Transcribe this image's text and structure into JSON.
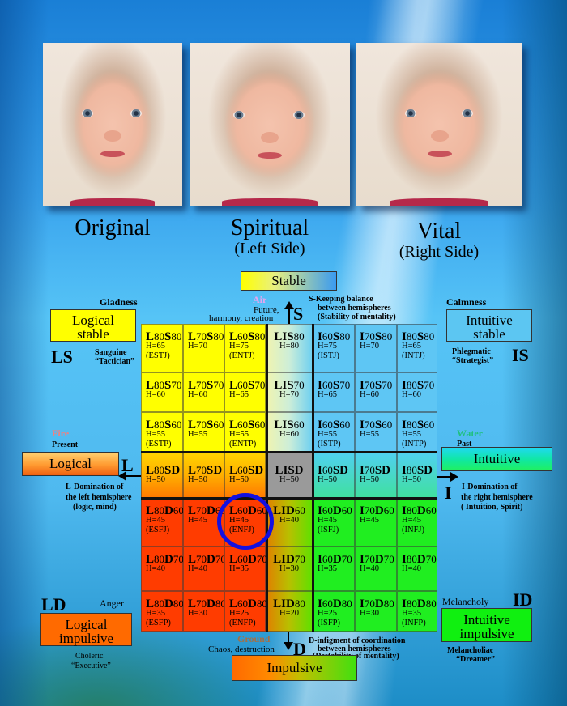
{
  "photos": [
    {
      "caption": "Original",
      "subcaption": ""
    },
    {
      "caption": "Spiritual",
      "subcaption": "(Left Side)"
    },
    {
      "caption": "Vital",
      "subcaption": "(Right Side)"
    }
  ],
  "axes": {
    "top": {
      "label": "Stable",
      "letter": "S",
      "element": "Air",
      "element_color": "#e6a6f0",
      "meaning": [
        "Future,",
        "harmony, creation"
      ],
      "description": [
        "S-Keeping balance",
        "between hemispheres",
        "(Stability of mentality)"
      ]
    },
    "left": {
      "label": "Logical",
      "letter": "L",
      "element": "Fire",
      "element_color": "#f08080",
      "meaning": [
        "Present"
      ],
      "description": [
        "L-Domination of",
        "the left hemisphere",
        "(logic, mind)"
      ]
    },
    "right": {
      "label": "Intuitive",
      "letter": "I",
      "element": "Water",
      "element_color": "#20c080",
      "meaning": [
        "Past"
      ],
      "description": [
        "I-Domination of",
        "the right hemisphere",
        "( Intuition, Spirit)"
      ]
    },
    "bottom": {
      "label": "Impulsive",
      "letter": "D",
      "element": "Ground",
      "element_color": "#a0704a",
      "meaning": [
        "Chaos, destruction"
      ],
      "description": [
        "D-infigment of coordination",
        "between hemispheres",
        "(Destability of mentality)"
      ]
    }
  },
  "corners": {
    "ls": {
      "code": "LS",
      "emotion": "Gladness",
      "label": [
        "Logical",
        "stable"
      ],
      "temperament": "Sanguine",
      "role": "“Tactician”"
    },
    "is": {
      "code": "IS",
      "emotion": "Calmness",
      "label": [
        "Intuitive",
        "stable"
      ],
      "temperament": "Phlegmatic",
      "role": "“Strategist”"
    },
    "ld": {
      "code": "LD",
      "emotion": "Anger",
      "label": [
        "Logical",
        "impulsive"
      ],
      "temperament": "Choleric",
      "role": "“Executive”"
    },
    "id": {
      "code": "ID",
      "emotion": "Melancholy",
      "label": [
        "Intuitive",
        "impulsive"
      ],
      "temperament": "Melancholiac",
      "role": "“Dreamer”"
    }
  },
  "grid": {
    "rows": [
      [
        {
          "a": "L",
          "an": "80",
          "b": "S",
          "bn": "80",
          "h": "H=65",
          "type": "(ESTJ)"
        },
        {
          "a": "L",
          "an": "70",
          "b": "S",
          "bn": "80",
          "h": "H=70",
          "type": ""
        },
        {
          "a": "L",
          "an": "60",
          "b": "S",
          "bn": "80",
          "h": "H=75",
          "type": "(ENTJ)"
        },
        {
          "a": "LI",
          "an": "",
          "b": "S",
          "bn": "80",
          "h": "H=80",
          "type": ""
        },
        {
          "a": "I",
          "an": "60",
          "b": "S",
          "bn": "80",
          "h": "H=75",
          "type": "(ISTJ)"
        },
        {
          "a": "I",
          "an": "70",
          "b": "S",
          "bn": "80",
          "h": "H=70",
          "type": ""
        },
        {
          "a": "I",
          "an": "80",
          "b": "S",
          "bn": "80",
          "h": "H=65",
          "type": "(INTJ)"
        }
      ],
      [
        {
          "a": "L",
          "an": "80",
          "b": "S",
          "bn": "70",
          "h": "H=60",
          "type": ""
        },
        {
          "a": "L",
          "an": "70",
          "b": "S",
          "bn": "70",
          "h": "H=60",
          "type": ""
        },
        {
          "a": "L",
          "an": "60",
          "b": "S",
          "bn": "70",
          "h": "H=65",
          "type": ""
        },
        {
          "a": "LI",
          "an": "",
          "b": "S",
          "bn": "70",
          "h": "H=70",
          "type": ""
        },
        {
          "a": "I",
          "an": "60",
          "b": "S",
          "bn": "70",
          "h": "H=65",
          "type": ""
        },
        {
          "a": "I",
          "an": "70",
          "b": "S",
          "bn": "70",
          "h": "H=60",
          "type": ""
        },
        {
          "a": "I",
          "an": "80",
          "b": "S",
          "bn": "70",
          "h": "H=60",
          "type": ""
        }
      ],
      [
        {
          "a": "L",
          "an": "80",
          "b": "S",
          "bn": "60",
          "h": "H=55",
          "type": "(ESTP)"
        },
        {
          "a": "L",
          "an": "70",
          "b": "S",
          "bn": "60",
          "h": "H=55",
          "type": ""
        },
        {
          "a": "L",
          "an": "60",
          "b": "S",
          "bn": "60",
          "h": "H=55",
          "type": "(ENTP)"
        },
        {
          "a": "LI",
          "an": "",
          "b": "S",
          "bn": "60",
          "h": "H=60",
          "type": ""
        },
        {
          "a": "I",
          "an": "60",
          "b": "S",
          "bn": "60",
          "h": "H=55",
          "type": "(ISTP)"
        },
        {
          "a": "I",
          "an": "70",
          "b": "S",
          "bn": "60",
          "h": "H=55",
          "type": ""
        },
        {
          "a": "I",
          "an": "80",
          "b": "S",
          "bn": "60",
          "h": "H=55",
          "type": "(INTP)"
        }
      ],
      [
        {
          "a": "L",
          "an": "80",
          "b": "SD",
          "bn": "",
          "h": "H=50",
          "type": ""
        },
        {
          "a": "L",
          "an": "70",
          "b": "SD",
          "bn": "",
          "h": "H=50",
          "type": ""
        },
        {
          "a": "L",
          "an": "60",
          "b": "SD",
          "bn": "",
          "h": "H=50",
          "type": ""
        },
        {
          "a": "LISD",
          "an": "",
          "b": "",
          "bn": "",
          "h": "H=50",
          "type": ""
        },
        {
          "a": "I",
          "an": "60",
          "b": "SD",
          "bn": "",
          "h": "H=50",
          "type": ""
        },
        {
          "a": "I",
          "an": "70",
          "b": "SD",
          "bn": "",
          "h": "H=50",
          "type": ""
        },
        {
          "a": "I",
          "an": "80",
          "b": "SD",
          "bn": "",
          "h": "H=50",
          "type": ""
        }
      ],
      [
        {
          "a": "L",
          "an": "80",
          "b": "D",
          "bn": "60",
          "h": "H=45",
          "type": "(ESFJ)"
        },
        {
          "a": "L",
          "an": "70",
          "b": "D",
          "bn": "60",
          "h": "H=45",
          "type": ""
        },
        {
          "a": "L",
          "an": "60",
          "b": "D",
          "bn": "60",
          "h": "H=45",
          "type": "(ENFJ)"
        },
        {
          "a": "LI",
          "an": "",
          "b": "D",
          "bn": "60",
          "h": "H=40",
          "type": ""
        },
        {
          "a": "I",
          "an": "60",
          "b": "D",
          "bn": "60",
          "h": "H=45",
          "type": "(ISFJ)"
        },
        {
          "a": "I",
          "an": "70",
          "b": "D",
          "bn": "60",
          "h": "H=45",
          "type": ""
        },
        {
          "a": "I",
          "an": "80",
          "b": "D",
          "bn": "60",
          "h": "H=45",
          "type": "(INFJ)"
        }
      ],
      [
        {
          "a": "L",
          "an": "80",
          "b": "D",
          "bn": "70",
          "h": "H=40",
          "type": ""
        },
        {
          "a": "L",
          "an": "70",
          "b": "D",
          "bn": "70",
          "h": "H=40",
          "type": ""
        },
        {
          "a": "L",
          "an": "60",
          "b": "D",
          "bn": "70",
          "h": "H=35",
          "type": ""
        },
        {
          "a": "LI",
          "an": "",
          "b": "D",
          "bn": "70",
          "h": "H=30",
          "type": ""
        },
        {
          "a": "I",
          "an": "60",
          "b": "D",
          "bn": "70",
          "h": "H=35",
          "type": ""
        },
        {
          "a": "I",
          "an": "70",
          "b": "D",
          "bn": "70",
          "h": "H=40",
          "type": ""
        },
        {
          "a": "I",
          "an": "80",
          "b": "D",
          "bn": "70",
          "h": "H=40",
          "type": ""
        }
      ],
      [
        {
          "a": "L",
          "an": "80",
          "b": "D",
          "bn": "80",
          "h": "H=35",
          "type": "(ESFP)"
        },
        {
          "a": "L",
          "an": "70",
          "b": "D",
          "bn": "80",
          "h": "H=30",
          "type": ""
        },
        {
          "a": "L",
          "an": "60",
          "b": "D",
          "bn": "80",
          "h": "H=25",
          "type": "(ENFP)"
        },
        {
          "a": "LI",
          "an": "",
          "b": "D",
          "bn": "80",
          "h": "H=20",
          "type": ""
        },
        {
          "a": "I",
          "an": "60",
          "b": "D",
          "bn": "80",
          "h": "H=25",
          "type": "(ISFP)"
        },
        {
          "a": "I",
          "an": "70",
          "b": "D",
          "bn": "80",
          "h": "H=30",
          "type": ""
        },
        {
          "a": "I",
          "an": "80",
          "b": "D",
          "bn": "80",
          "h": "H=35",
          "type": "(INFP)"
        }
      ]
    ],
    "highlighted_cell": "L60D60 (ENFJ)",
    "highlight_color": "#1410e0"
  }
}
